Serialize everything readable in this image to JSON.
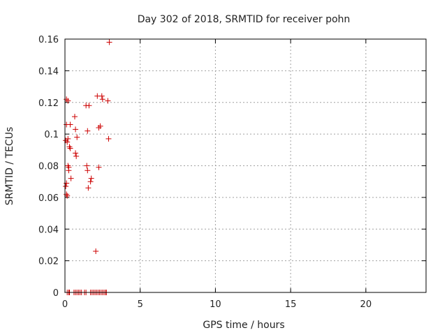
{
  "chart_data": {
    "type": "scatter",
    "title": "Day 302 of 2018, SRMTID for receiver pohn",
    "xlabel": "GPS time / hours",
    "ylabel": "SRMTID / TECUs",
    "xlim": [
      0,
      24
    ],
    "ylim": [
      0,
      0.16
    ],
    "xticks": [
      0,
      5,
      10,
      15,
      20
    ],
    "xtick_labels": [
      "0",
      "5",
      "10",
      "15",
      "20"
    ],
    "yticks": [
      0,
      0.02,
      0.04,
      0.06,
      0.08,
      0.1,
      0.12,
      0.14,
      0.16
    ],
    "ytick_labels": [
      "0",
      "0.02",
      "0.04",
      "0.06",
      "0.08",
      "0.1",
      "0.12",
      "0.14",
      "0.16"
    ],
    "grid": true,
    "marker": "+",
    "color": "#cc0000",
    "series": [
      {
        "name": "SRMTID",
        "points": [
          [
            0.05,
            0.096
          ],
          [
            0.1,
            0.122
          ],
          [
            0.1,
            0.106
          ],
          [
            0.1,
            0.069
          ],
          [
            0.05,
            0.067
          ],
          [
            0.1,
            0.062
          ],
          [
            0.15,
            0.061
          ],
          [
            0.15,
            0.095
          ],
          [
            0.2,
            0.121
          ],
          [
            0.2,
            0.097
          ],
          [
            0.2,
            0.08
          ],
          [
            0.25,
            0.079
          ],
          [
            0.25,
            0.077
          ],
          [
            0.3,
            0.092
          ],
          [
            0.35,
            0.106
          ],
          [
            0.35,
            0.091
          ],
          [
            0.4,
            0.072
          ],
          [
            0.65,
            0.111
          ],
          [
            0.7,
            0.103
          ],
          [
            0.7,
            0.088
          ],
          [
            0.75,
            0.086
          ],
          [
            0.8,
            0.098
          ],
          [
            1.4,
            0.118
          ],
          [
            1.45,
            0.08
          ],
          [
            1.5,
            0.102
          ],
          [
            1.5,
            0.077
          ],
          [
            1.55,
            0.066
          ],
          [
            1.6,
            0.118
          ],
          [
            1.7,
            0.07
          ],
          [
            1.75,
            0.072
          ],
          [
            2.05,
            0.026
          ],
          [
            2.15,
            0.124
          ],
          [
            2.25,
            0.079
          ],
          [
            2.25,
            0.104
          ],
          [
            2.35,
            0.105
          ],
          [
            2.45,
            0.124
          ],
          [
            2.5,
            0.122
          ],
          [
            2.85,
            0.121
          ],
          [
            2.9,
            0.097
          ],
          [
            2.95,
            0.158
          ],
          [
            0.15,
            0
          ],
          [
            0.25,
            0
          ],
          [
            0.3,
            0
          ],
          [
            0.6,
            0
          ],
          [
            0.7,
            0
          ],
          [
            0.8,
            0
          ],
          [
            0.9,
            0
          ],
          [
            1.0,
            0
          ],
          [
            1.1,
            0
          ],
          [
            1.3,
            0
          ],
          [
            1.4,
            0
          ],
          [
            1.7,
            0
          ],
          [
            1.8,
            0
          ],
          [
            1.9,
            0
          ],
          [
            2.0,
            0
          ],
          [
            2.1,
            0
          ],
          [
            2.2,
            0
          ],
          [
            2.3,
            0
          ],
          [
            2.4,
            0
          ],
          [
            2.5,
            0
          ],
          [
            2.6,
            0
          ],
          [
            2.7,
            0
          ],
          [
            2.75,
            0
          ]
        ]
      }
    ]
  }
}
